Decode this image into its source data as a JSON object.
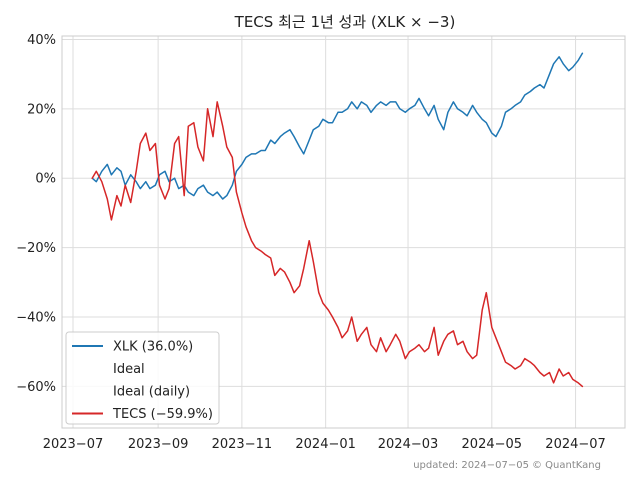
{
  "chart_data": {
    "type": "line",
    "title": "TECS 최근 1년 성과 (XLK × −3)",
    "xlabel": "",
    "ylabel": "",
    "x_ticks": [
      "2023−07",
      "2023−09",
      "2023−11",
      "2024−01",
      "2024−03",
      "2024−05",
      "2024−07"
    ],
    "x_tick_days": [
      0,
      62,
      123,
      184,
      244,
      305,
      366
    ],
    "xlim_days": [
      -8,
      402
    ],
    "y_ticks": [
      40,
      20,
      0,
      -20,
      -40,
      -60
    ],
    "y_tick_labels": [
      "40%",
      "20%",
      "0%",
      "−20%",
      "−40%",
      "−60%"
    ],
    "ylim": [
      -72,
      41
    ],
    "grid": true,
    "legend_position": "lower-left",
    "legend": [
      {
        "label": "XLK (36.0%)",
        "color": "#1f77b4",
        "marker": "line"
      },
      {
        "label": "Ideal",
        "color": "none",
        "marker": "none"
      },
      {
        "label": "Ideal (daily)",
        "color": "none",
        "marker": "none"
      },
      {
        "label": "TECS (−59.9%)",
        "color": "#d62728",
        "marker": "line"
      }
    ],
    "series": [
      {
        "name": "XLK",
        "color": "#1f77b4",
        "x_days": [
          14,
          17,
          21,
          25,
          28,
          32,
          35,
          38,
          42,
          46,
          49,
          53,
          56,
          60,
          63,
          67,
          70,
          74,
          77,
          81,
          84,
          88,
          91,
          95,
          98,
          102,
          105,
          109,
          112,
          116,
          119,
          123,
          126,
          130,
          133,
          137,
          140,
          144,
          147,
          151,
          154,
          158,
          161,
          165,
          168,
          172,
          175,
          179,
          182,
          186,
          189,
          193,
          196,
          200,
          203,
          207,
          210,
          214,
          217,
          221,
          224,
          228,
          231,
          235,
          238,
          242,
          245,
          249,
          252,
          256,
          259,
          263,
          266,
          270,
          273,
          277,
          280,
          284,
          287,
          291,
          294,
          298,
          301,
          305,
          308,
          312,
          315,
          319,
          322,
          326,
          329,
          333,
          336,
          340,
          343,
          347,
          350,
          354,
          357,
          361,
          364,
          368,
          371
        ],
        "values": [
          0,
          -1,
          2,
          4,
          1,
          3,
          2,
          -2,
          1,
          -1,
          -3,
          -1,
          -3,
          -2,
          1,
          2,
          -1,
          0,
          -3,
          -2,
          -4,
          -5,
          -3,
          -2,
          -4,
          -5,
          -4,
          -6,
          -5,
          -2,
          2,
          4,
          6,
          7,
          7,
          8,
          8,
          11,
          10,
          12,
          13,
          14,
          12,
          9,
          7,
          11,
          14,
          15,
          17,
          16,
          16,
          19,
          19,
          20,
          22,
          20,
          22,
          21,
          19,
          21,
          22,
          21,
          22,
          22,
          20,
          19,
          20,
          21,
          23,
          20,
          18,
          21,
          17,
          14,
          19,
          22,
          20,
          19,
          18,
          21,
          19,
          17,
          16,
          13,
          12,
          15,
          19,
          20,
          21,
          22,
          24,
          25,
          26,
          27,
          26,
          30,
          33,
          35,
          33,
          31,
          32,
          34,
          36
        ]
      },
      {
        "name": "TECS",
        "color": "#d62728",
        "x_days": [
          14,
          17,
          21,
          25,
          28,
          32,
          35,
          38,
          42,
          46,
          49,
          53,
          56,
          60,
          63,
          67,
          70,
          74,
          77,
          81,
          84,
          88,
          91,
          95,
          98,
          102,
          105,
          109,
          112,
          116,
          119,
          123,
          126,
          130,
          133,
          137,
          140,
          144,
          147,
          151,
          154,
          158,
          161,
          165,
          168,
          172,
          175,
          179,
          182,
          186,
          189,
          193,
          196,
          200,
          203,
          207,
          210,
          214,
          217,
          221,
          224,
          228,
          231,
          235,
          238,
          242,
          245,
          249,
          252,
          256,
          259,
          263,
          266,
          270,
          273,
          277,
          280,
          284,
          287,
          291,
          294,
          298,
          301,
          305,
          308,
          312,
          315,
          319,
          322,
          326,
          329,
          333,
          336,
          340,
          343,
          347,
          350,
          354,
          357,
          361,
          364,
          368,
          371
        ],
        "values": [
          0,
          2,
          -1,
          -6,
          -12,
          -5,
          -8,
          -2,
          -7,
          2,
          10,
          13,
          8,
          10,
          -2,
          -6,
          -3,
          10,
          12,
          -5,
          15,
          16,
          9,
          5,
          20,
          12,
          22,
          15,
          9,
          6,
          -4,
          -10,
          -14,
          -18,
          -20,
          -21,
          -22,
          -23,
          -28,
          -26,
          -27,
          -30,
          -33,
          -31,
          -26,
          -18,
          -24,
          -33,
          -36,
          -38,
          -40,
          -43,
          -46,
          -44,
          -40,
          -47,
          -45,
          -43,
          -48,
          -50,
          -46,
          -50,
          -48,
          -45,
          -47,
          -52,
          -50,
          -49,
          -48,
          -50,
          -49,
          -43,
          -51,
          -47,
          -45,
          -44,
          -48,
          -47,
          -50,
          -52,
          -51,
          -38,
          -33,
          -43,
          -46,
          -50,
          -53,
          -54,
          -55,
          -54,
          -52,
          -53,
          -54,
          -56,
          -57,
          -56,
          -59,
          -55,
          -57,
          -56,
          -58,
          -59,
          -60
        ]
      }
    ]
  },
  "footer": {
    "updated": "updated: 2024−07−05",
    "copyright": "© QuantKang"
  }
}
